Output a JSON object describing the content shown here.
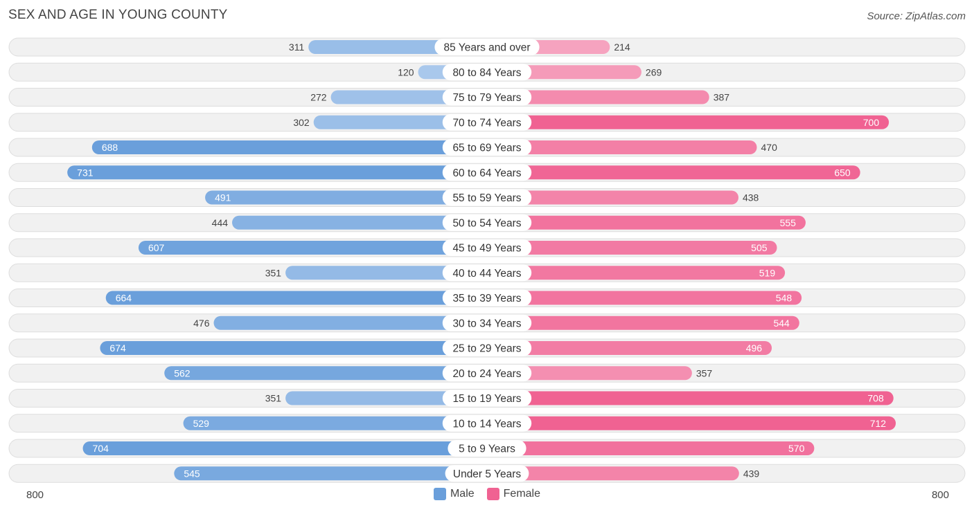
{
  "title": "SEX AND AGE IN YOUNG COUNTY",
  "source": "Source: ZipAtlas.com",
  "axis": {
    "left_label": "800",
    "right_label": "800"
  },
  "legend": {
    "male_label": "Male",
    "female_label": "Female"
  },
  "colors": {
    "male_strong": "#6a9fdb",
    "male_light": "#a9c8ec",
    "female_strong": "#f06292",
    "female_light": "#f6a5c0",
    "row_bg": "#f1f1f1",
    "row_border": "#dddddd"
  },
  "chart_data": {
    "type": "bar",
    "orientation": "horizontal-diverging",
    "title": "SEX AND AGE IN YOUNG COUNTY",
    "xlim": [
      -800,
      800
    ],
    "categories": [
      "85 Years and over",
      "80 to 84 Years",
      "75 to 79 Years",
      "70 to 74 Years",
      "65 to 69 Years",
      "60 to 64 Years",
      "55 to 59 Years",
      "50 to 54 Years",
      "45 to 49 Years",
      "40 to 44 Years",
      "35 to 39 Years",
      "30 to 34 Years",
      "25 to 29 Years",
      "20 to 24 Years",
      "15 to 19 Years",
      "10 to 14 Years",
      "5 to 9 Years",
      "Under 5 Years"
    ],
    "series": [
      {
        "name": "Male",
        "values": [
          311,
          120,
          272,
          302,
          688,
          731,
          491,
          444,
          607,
          351,
          664,
          476,
          674,
          562,
          351,
          529,
          704,
          545
        ]
      },
      {
        "name": "Female",
        "values": [
          214,
          269,
          387,
          700,
          470,
          650,
          438,
          555,
          505,
          519,
          548,
          544,
          496,
          357,
          708,
          712,
          570,
          439
        ]
      }
    ]
  }
}
